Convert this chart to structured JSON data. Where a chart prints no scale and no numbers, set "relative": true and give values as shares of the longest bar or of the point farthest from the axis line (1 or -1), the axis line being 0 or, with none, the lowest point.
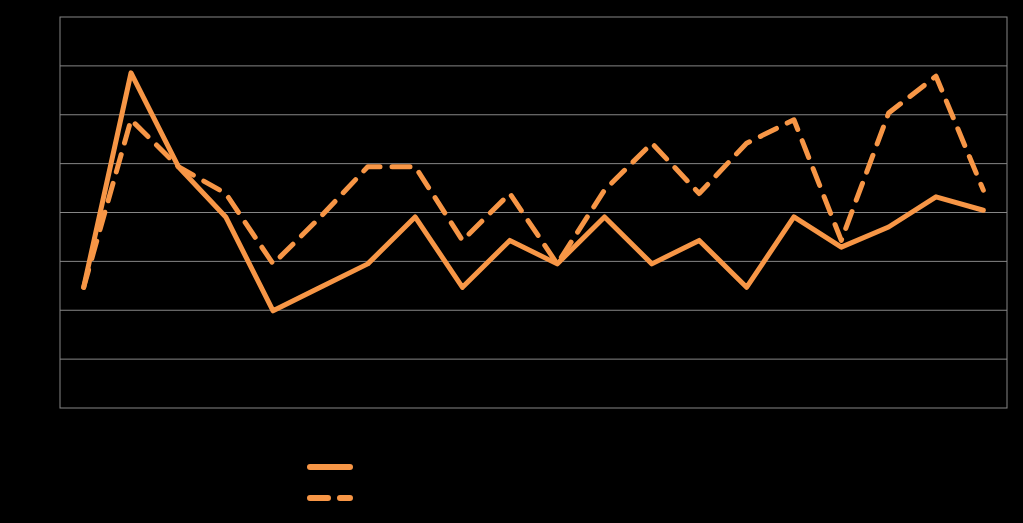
{
  "chart_data": {
    "type": "line",
    "relative": true,
    "grid": "y",
    "marker": "none",
    "categories": [
      null,
      null,
      null,
      null,
      null,
      null,
      null,
      null,
      null,
      null,
      null,
      null,
      null,
      null,
      null,
      null,
      null,
      null,
      null,
      null
    ],
    "series": [
      {
        "color": "#f79646",
        "line_style": "solid",
        "values": [
          0.36,
          1,
          0.72,
          0.57,
          0.29,
          0.36,
          0.43,
          0.57,
          0.36,
          0.5,
          0.43,
          0.57,
          0.43,
          0.5,
          0.36,
          0.57,
          0.48,
          0.54,
          0.63,
          0.59
        ]
      },
      {
        "color": "#f79646",
        "line_style": "dashed",
        "values": [
          0.36,
          0.86,
          0.72,
          0.64,
          0.43,
          0.57,
          0.72,
          0.72,
          0.5,
          0.64,
          0.43,
          0.65,
          0.79,
          0.64,
          0.79,
          0.86,
          0.5,
          0.88,
          0.99,
          0.65
        ]
      }
    ]
  }
}
